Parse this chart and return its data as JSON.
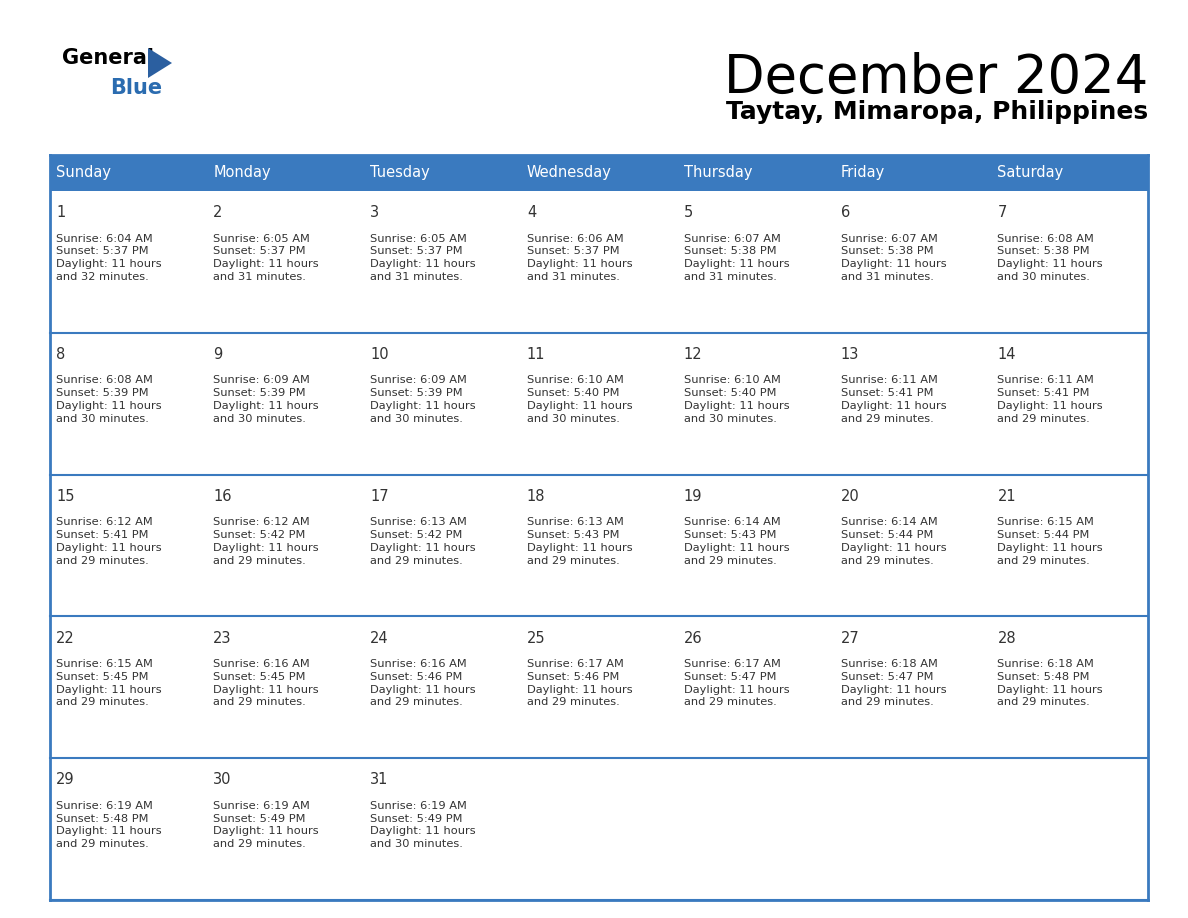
{
  "title": "December 2024",
  "subtitle": "Taytay, Mimaropa, Philippines",
  "days_of_week": [
    "Sunday",
    "Monday",
    "Tuesday",
    "Wednesday",
    "Thursday",
    "Friday",
    "Saturday"
  ],
  "header_bg": "#3a7abf",
  "header_text": "#ffffff",
  "cell_bg": "#ffffff",
  "border_color": "#3a7abf",
  "separator_color": "#3a7abf",
  "text_color": "#333333",
  "calendar_data": [
    {
      "day": 1,
      "col": 0,
      "row": 0,
      "sunrise": "6:04 AM",
      "sunset": "5:37 PM",
      "daylight": "11 hours and 32 minutes."
    },
    {
      "day": 2,
      "col": 1,
      "row": 0,
      "sunrise": "6:05 AM",
      "sunset": "5:37 PM",
      "daylight": "11 hours and 31 minutes."
    },
    {
      "day": 3,
      "col": 2,
      "row": 0,
      "sunrise": "6:05 AM",
      "sunset": "5:37 PM",
      "daylight": "11 hours and 31 minutes."
    },
    {
      "day": 4,
      "col": 3,
      "row": 0,
      "sunrise": "6:06 AM",
      "sunset": "5:37 PM",
      "daylight": "11 hours and 31 minutes."
    },
    {
      "day": 5,
      "col": 4,
      "row": 0,
      "sunrise": "6:07 AM",
      "sunset": "5:38 PM",
      "daylight": "11 hours and 31 minutes."
    },
    {
      "day": 6,
      "col": 5,
      "row": 0,
      "sunrise": "6:07 AM",
      "sunset": "5:38 PM",
      "daylight": "11 hours and 31 minutes."
    },
    {
      "day": 7,
      "col": 6,
      "row": 0,
      "sunrise": "6:08 AM",
      "sunset": "5:38 PM",
      "daylight": "11 hours and 30 minutes."
    },
    {
      "day": 8,
      "col": 0,
      "row": 1,
      "sunrise": "6:08 AM",
      "sunset": "5:39 PM",
      "daylight": "11 hours and 30 minutes."
    },
    {
      "day": 9,
      "col": 1,
      "row": 1,
      "sunrise": "6:09 AM",
      "sunset": "5:39 PM",
      "daylight": "11 hours and 30 minutes."
    },
    {
      "day": 10,
      "col": 2,
      "row": 1,
      "sunrise": "6:09 AM",
      "sunset": "5:39 PM",
      "daylight": "11 hours and 30 minutes."
    },
    {
      "day": 11,
      "col": 3,
      "row": 1,
      "sunrise": "6:10 AM",
      "sunset": "5:40 PM",
      "daylight": "11 hours and 30 minutes."
    },
    {
      "day": 12,
      "col": 4,
      "row": 1,
      "sunrise": "6:10 AM",
      "sunset": "5:40 PM",
      "daylight": "11 hours and 30 minutes."
    },
    {
      "day": 13,
      "col": 5,
      "row": 1,
      "sunrise": "6:11 AM",
      "sunset": "5:41 PM",
      "daylight": "11 hours and 29 minutes."
    },
    {
      "day": 14,
      "col": 6,
      "row": 1,
      "sunrise": "6:11 AM",
      "sunset": "5:41 PM",
      "daylight": "11 hours and 29 minutes."
    },
    {
      "day": 15,
      "col": 0,
      "row": 2,
      "sunrise": "6:12 AM",
      "sunset": "5:41 PM",
      "daylight": "11 hours and 29 minutes."
    },
    {
      "day": 16,
      "col": 1,
      "row": 2,
      "sunrise": "6:12 AM",
      "sunset": "5:42 PM",
      "daylight": "11 hours and 29 minutes."
    },
    {
      "day": 17,
      "col": 2,
      "row": 2,
      "sunrise": "6:13 AM",
      "sunset": "5:42 PM",
      "daylight": "11 hours and 29 minutes."
    },
    {
      "day": 18,
      "col": 3,
      "row": 2,
      "sunrise": "6:13 AM",
      "sunset": "5:43 PM",
      "daylight": "11 hours and 29 minutes."
    },
    {
      "day": 19,
      "col": 4,
      "row": 2,
      "sunrise": "6:14 AM",
      "sunset": "5:43 PM",
      "daylight": "11 hours and 29 minutes."
    },
    {
      "day": 20,
      "col": 5,
      "row": 2,
      "sunrise": "6:14 AM",
      "sunset": "5:44 PM",
      "daylight": "11 hours and 29 minutes."
    },
    {
      "day": 21,
      "col": 6,
      "row": 2,
      "sunrise": "6:15 AM",
      "sunset": "5:44 PM",
      "daylight": "11 hours and 29 minutes."
    },
    {
      "day": 22,
      "col": 0,
      "row": 3,
      "sunrise": "6:15 AM",
      "sunset": "5:45 PM",
      "daylight": "11 hours and 29 minutes."
    },
    {
      "day": 23,
      "col": 1,
      "row": 3,
      "sunrise": "6:16 AM",
      "sunset": "5:45 PM",
      "daylight": "11 hours and 29 minutes."
    },
    {
      "day": 24,
      "col": 2,
      "row": 3,
      "sunrise": "6:16 AM",
      "sunset": "5:46 PM",
      "daylight": "11 hours and 29 minutes."
    },
    {
      "day": 25,
      "col": 3,
      "row": 3,
      "sunrise": "6:17 AM",
      "sunset": "5:46 PM",
      "daylight": "11 hours and 29 minutes."
    },
    {
      "day": 26,
      "col": 4,
      "row": 3,
      "sunrise": "6:17 AM",
      "sunset": "5:47 PM",
      "daylight": "11 hours and 29 minutes."
    },
    {
      "day": 27,
      "col": 5,
      "row": 3,
      "sunrise": "6:18 AM",
      "sunset": "5:47 PM",
      "daylight": "11 hours and 29 minutes."
    },
    {
      "day": 28,
      "col": 6,
      "row": 3,
      "sunrise": "6:18 AM",
      "sunset": "5:48 PM",
      "daylight": "11 hours and 29 minutes."
    },
    {
      "day": 29,
      "col": 0,
      "row": 4,
      "sunrise": "6:19 AM",
      "sunset": "5:48 PM",
      "daylight": "11 hours and 29 minutes."
    },
    {
      "day": 30,
      "col": 1,
      "row": 4,
      "sunrise": "6:19 AM",
      "sunset": "5:49 PM",
      "daylight": "11 hours and 29 minutes."
    },
    {
      "day": 31,
      "col": 2,
      "row": 4,
      "sunrise": "6:19 AM",
      "sunset": "5:49 PM",
      "daylight": "11 hours and 30 minutes."
    }
  ],
  "num_rows": 5,
  "num_cols": 7,
  "logo_text_general": "General",
  "logo_text_blue": "Blue",
  "logo_triangle_color": "#2b5fa0"
}
